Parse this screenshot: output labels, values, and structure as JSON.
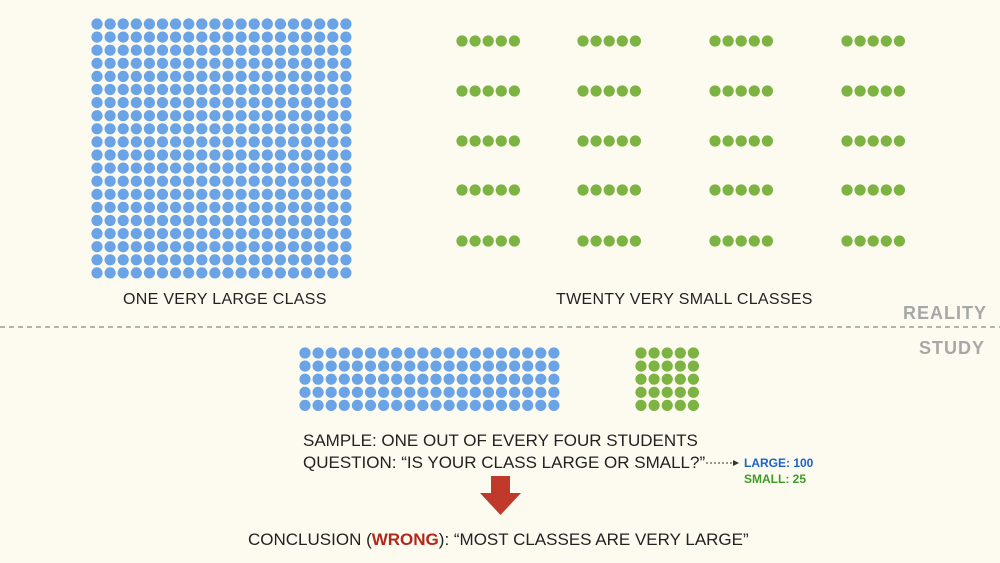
{
  "colors": {
    "background": "#fdfbf0",
    "large": "#6aa3e6",
    "small": "#7cb342",
    "arrow": "#c0392b",
    "wrong": "#b0281c",
    "large_label": "#1b62c8",
    "small_label": "#3e9b26",
    "divider": "#999999",
    "zone_label": "#a7a7a7"
  },
  "reality": {
    "zone_label": "REALITY",
    "large_caption": "ONE VERY LARGE CLASS",
    "small_caption": "TWENTY VERY SMALL CLASSES",
    "large_class": {
      "rows": 20,
      "cols": 20,
      "students": 400
    },
    "small_classes": {
      "count": 20,
      "students_each": 5
    }
  },
  "study": {
    "zone_label": "STUDY",
    "sample_large": {
      "rows": 5,
      "cols": 20,
      "students": 100
    },
    "sample_small": {
      "rows": 5,
      "cols": 5,
      "students": 25
    },
    "sample_line": "SAMPLE: ONE OUT OF EVERY FOUR STUDENTS",
    "question_line": "QUESTION: “IS YOUR CLASS LARGE OR SMALL?”",
    "answers": {
      "large": "LARGE: 100",
      "small": "SMALL: 25"
    },
    "conclusion": {
      "prefix": "CONCLUSION (",
      "wrong": "WRONG",
      "suffix": "): “MOST CLASSES ARE VERY LARGE”"
    }
  }
}
